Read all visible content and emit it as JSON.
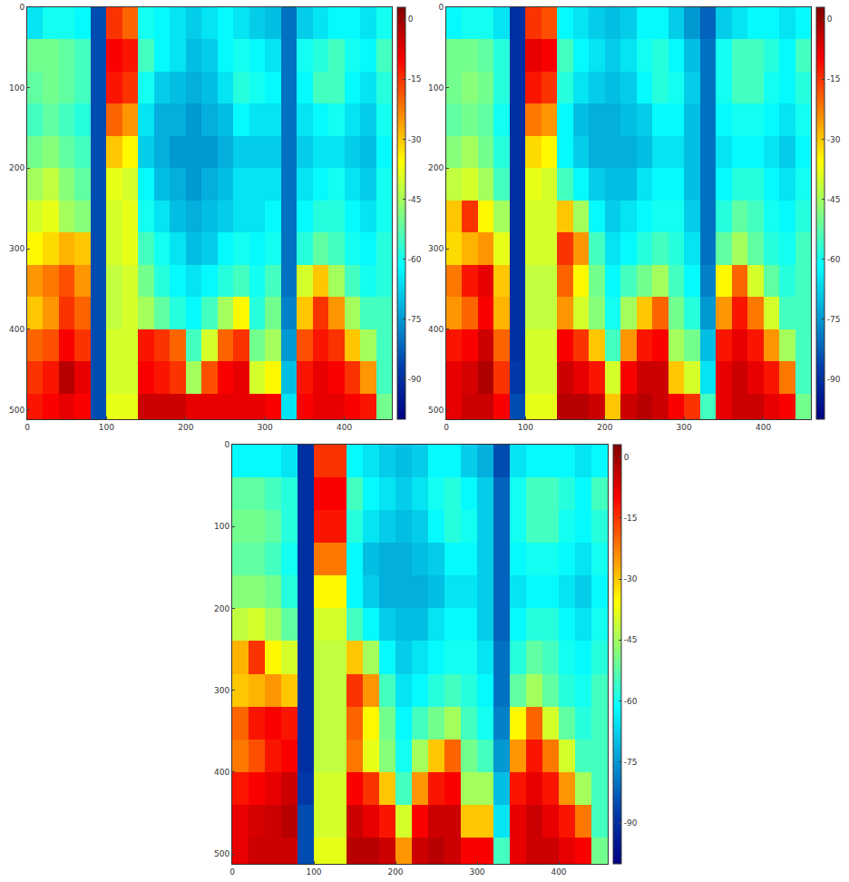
{
  "chart_data": [
    {
      "type": "heatmap",
      "color": "Jet",
      "x": [
        10,
        30,
        50,
        70,
        90,
        110,
        130,
        150,
        170,
        190,
        210,
        230,
        250,
        270,
        290,
        310,
        330,
        350,
        370,
        390,
        410,
        430,
        450
      ],
      "y": [
        20,
        60,
        100,
        140,
        180,
        220,
        260,
        300,
        340,
        380,
        420,
        460,
        500
      ],
      "cells": [
        [
          -65,
          -60,
          -60,
          -62,
          -85,
          -15,
          -20,
          -60,
          -62,
          -65,
          -68,
          -65,
          -62,
          -65,
          -68,
          -70,
          -80,
          -68,
          -65,
          -62,
          -62,
          -65,
          -60
        ],
        [
          -50,
          -50,
          -52,
          -55,
          -85,
          -10,
          -12,
          -55,
          -62,
          -65,
          -70,
          -68,
          -62,
          -60,
          -62,
          -65,
          -80,
          -60,
          -58,
          -55,
          -60,
          -62,
          -55
        ],
        [
          -52,
          -50,
          -52,
          -55,
          -85,
          -12,
          -15,
          -60,
          -68,
          -70,
          -72,
          -70,
          -65,
          -58,
          -60,
          -62,
          -80,
          -62,
          -55,
          -55,
          -62,
          -65,
          -58
        ],
        [
          -55,
          -52,
          -55,
          -58,
          -85,
          -20,
          -25,
          -65,
          -72,
          -72,
          -75,
          -72,
          -70,
          -62,
          -65,
          -65,
          -80,
          -65,
          -62,
          -60,
          -65,
          -68,
          -60
        ],
        [
          -50,
          -48,
          -52,
          -55,
          -85,
          -30,
          -35,
          -68,
          -72,
          -75,
          -75,
          -75,
          -72,
          -68,
          -68,
          -68,
          -80,
          -68,
          -65,
          -65,
          -68,
          -70,
          -62
        ],
        [
          -45,
          -42,
          -48,
          -52,
          -85,
          -38,
          -40,
          -62,
          -70,
          -72,
          -75,
          -72,
          -70,
          -65,
          -65,
          -65,
          -80,
          -65,
          -62,
          -60,
          -65,
          -68,
          -60
        ],
        [
          -40,
          -38,
          -45,
          -48,
          -85,
          -40,
          -38,
          -60,
          -65,
          -70,
          -72,
          -70,
          -68,
          -65,
          -65,
          -62,
          -80,
          -62,
          -58,
          -58,
          -62,
          -65,
          -60
        ],
        [
          -35,
          -32,
          -28,
          -30,
          -85,
          -40,
          -38,
          -55,
          -60,
          -65,
          -70,
          -68,
          -62,
          -60,
          -62,
          -60,
          -80,
          -58,
          -52,
          -55,
          -60,
          -62,
          -58
        ],
        [
          -25,
          -22,
          -18,
          -25,
          -85,
          -42,
          -40,
          -50,
          -58,
          -62,
          -65,
          -62,
          -58,
          -55,
          -60,
          -55,
          -80,
          -40,
          -30,
          -45,
          -55,
          -60,
          -58
        ],
        [
          -30,
          -25,
          -15,
          -20,
          -85,
          -42,
          -40,
          -45,
          -52,
          -58,
          -62,
          -55,
          -45,
          -35,
          -58,
          -50,
          -78,
          -30,
          -15,
          -25,
          -45,
          -55,
          -55
        ],
        [
          -20,
          -18,
          -10,
          -15,
          -85,
          -40,
          -40,
          -12,
          -15,
          -20,
          -55,
          -40,
          -20,
          -15,
          -50,
          -45,
          -75,
          -18,
          -12,
          -15,
          -30,
          -45,
          -55
        ],
        [
          -15,
          -12,
          -3,
          -8,
          -85,
          -40,
          -40,
          -10,
          -12,
          -15,
          -45,
          -18,
          -10,
          -8,
          -40,
          -35,
          -70,
          -12,
          -8,
          -10,
          -15,
          -25,
          -55
        ],
        [
          -12,
          -10,
          -8,
          -10,
          -85,
          -38,
          -38,
          -5,
          -5,
          -5,
          -8,
          -8,
          -8,
          -8,
          -8,
          -10,
          -65,
          -10,
          -8,
          -8,
          -10,
          -12,
          -50
        ]
      ],
      "xlim": [
        0,
        460
      ],
      "ylim": [
        512,
        0
      ],
      "xticks": [
        0,
        100,
        200,
        300,
        400
      ],
      "yticks": [
        0,
        100,
        200,
        300,
        400,
        500
      ],
      "colorbar_range": [
        -100,
        3
      ],
      "colorbar_ticks": [
        0,
        -15,
        -30,
        -45,
        -60,
        -75,
        -90
      ]
    },
    {
      "type": "heatmap",
      "color": "Jet",
      "x": [
        10,
        30,
        50,
        70,
        90,
        110,
        130,
        150,
        170,
        190,
        210,
        230,
        250,
        270,
        290,
        310,
        330,
        350,
        370,
        390,
        410,
        430,
        450
      ],
      "y": [
        20,
        60,
        100,
        140,
        180,
        220,
        260,
        300,
        340,
        380,
        420,
        460,
        500
      ],
      "cells": [
        [
          -62,
          -60,
          -60,
          -65,
          -90,
          -15,
          -18,
          -62,
          -65,
          -68,
          -70,
          -68,
          -62,
          -62,
          -68,
          -75,
          -82,
          -68,
          -65,
          -62,
          -62,
          -65,
          -62
        ],
        [
          -50,
          -50,
          -52,
          -58,
          -90,
          -8,
          -10,
          -55,
          -62,
          -65,
          -68,
          -65,
          -60,
          -58,
          -62,
          -70,
          -80,
          -60,
          -55,
          -55,
          -58,
          -62,
          -55
        ],
        [
          -50,
          -48,
          -50,
          -58,
          -90,
          -12,
          -15,
          -58,
          -65,
          -68,
          -70,
          -68,
          -62,
          -58,
          -60,
          -68,
          -80,
          -60,
          -55,
          -55,
          -60,
          -62,
          -58
        ],
        [
          -52,
          -50,
          -52,
          -60,
          -90,
          -22,
          -25,
          -62,
          -70,
          -72,
          -72,
          -70,
          -68,
          -62,
          -62,
          -70,
          -80,
          -62,
          -60,
          -60,
          -62,
          -65,
          -60
        ],
        [
          -48,
          -45,
          -50,
          -58,
          -90,
          -32,
          -35,
          -62,
          -68,
          -72,
          -72,
          -72,
          -70,
          -65,
          -65,
          -70,
          -80,
          -65,
          -62,
          -62,
          -65,
          -68,
          -62
        ],
        [
          -42,
          -40,
          -45,
          -55,
          -90,
          -38,
          -40,
          -55,
          -62,
          -68,
          -70,
          -70,
          -65,
          -62,
          -62,
          -70,
          -80,
          -62,
          -58,
          -58,
          -62,
          -65,
          -60
        ],
        [
          -30,
          -15,
          -35,
          -45,
          -90,
          -40,
          -40,
          -30,
          -45,
          -62,
          -68,
          -65,
          -62,
          -60,
          -60,
          -68,
          -80,
          -58,
          -52,
          -55,
          -60,
          -62,
          -58
        ],
        [
          -32,
          -28,
          -25,
          -38,
          -90,
          -40,
          -40,
          -15,
          -25,
          -55,
          -65,
          -62,
          -58,
          -55,
          -58,
          -65,
          -80,
          -52,
          -45,
          -52,
          -58,
          -60,
          -55
        ],
        [
          -22,
          -12,
          -8,
          -30,
          -90,
          -42,
          -42,
          -20,
          -35,
          -50,
          -62,
          -55,
          -50,
          -45,
          -55,
          -62,
          -78,
          -35,
          -20,
          -40,
          -52,
          -58,
          -55
        ],
        [
          -25,
          -20,
          -10,
          -28,
          -90,
          -42,
          -42,
          -25,
          -40,
          -48,
          -60,
          -45,
          -30,
          -20,
          -50,
          -58,
          -75,
          -25,
          -12,
          -22,
          -40,
          -55,
          -55
        ],
        [
          -12,
          -10,
          -5,
          -20,
          -90,
          -40,
          -40,
          -10,
          -15,
          -30,
          -55,
          -25,
          -12,
          -10,
          -45,
          -50,
          -70,
          -12,
          -8,
          -12,
          -25,
          -45,
          -55
        ],
        [
          -8,
          -6,
          -2,
          -15,
          -88,
          -40,
          -40,
          -5,
          -8,
          -12,
          -40,
          -10,
          -5,
          -5,
          -30,
          -40,
          -65,
          -8,
          -5,
          -8,
          -12,
          -22,
          -55
        ],
        [
          -8,
          -5,
          -5,
          -10,
          -85,
          -38,
          -38,
          -3,
          -3,
          -5,
          -30,
          -5,
          -3,
          -5,
          -10,
          -15,
          -55,
          -8,
          -5,
          -5,
          -8,
          -10,
          -50
        ]
      ],
      "xlim": [
        0,
        460
      ],
      "ylim": [
        512,
        0
      ],
      "xticks": [
        0,
        100,
        200,
        300,
        400
      ],
      "yticks": [
        0,
        100,
        200,
        300,
        400,
        500
      ],
      "colorbar_range": [
        -100,
        3
      ],
      "colorbar_ticks": [
        0,
        -15,
        -30,
        -45,
        -60,
        -75,
        -90
      ]
    },
    {
      "type": "heatmap",
      "color": "Jet",
      "x": [
        10,
        30,
        50,
        70,
        90,
        110,
        130,
        150,
        170,
        190,
        210,
        230,
        250,
        270,
        290,
        310,
        330,
        350,
        370,
        390,
        410,
        430,
        450
      ],
      "y": [
        20,
        60,
        100,
        140,
        180,
        220,
        260,
        300,
        340,
        380,
        420,
        460,
        500
      ],
      "cells": [
        [
          -62,
          -62,
          -62,
          -65,
          -90,
          -15,
          -15,
          -62,
          -65,
          -68,
          -70,
          -68,
          -62,
          -62,
          -68,
          -72,
          -85,
          -65,
          -62,
          -62,
          -62,
          -65,
          -62
        ],
        [
          -52,
          -52,
          -55,
          -58,
          -90,
          -10,
          -10,
          -55,
          -62,
          -65,
          -68,
          -65,
          -60,
          -58,
          -62,
          -68,
          -82,
          -60,
          -55,
          -55,
          -58,
          -62,
          -55
        ],
        [
          -50,
          -50,
          -52,
          -58,
          -90,
          -12,
          -12,
          -58,
          -65,
          -68,
          -70,
          -68,
          -62,
          -58,
          -60,
          -68,
          -82,
          -60,
          -55,
          -55,
          -60,
          -62,
          -58
        ],
        [
          -52,
          -52,
          -55,
          -60,
          -90,
          -22,
          -22,
          -62,
          -70,
          -72,
          -72,
          -70,
          -68,
          -62,
          -62,
          -68,
          -82,
          -62,
          -60,
          -60,
          -62,
          -65,
          -60
        ],
        [
          -48,
          -48,
          -50,
          -58,
          -90,
          -35,
          -35,
          -62,
          -68,
          -72,
          -72,
          -72,
          -70,
          -65,
          -65,
          -68,
          -82,
          -65,
          -62,
          -62,
          -65,
          -68,
          -62
        ],
        [
          -42,
          -40,
          -45,
          -52,
          -90,
          -40,
          -40,
          -55,
          -62,
          -68,
          -70,
          -70,
          -65,
          -62,
          -62,
          -68,
          -82,
          -62,
          -58,
          -58,
          -62,
          -65,
          -60
        ],
        [
          -28,
          -15,
          -35,
          -40,
          -90,
          -42,
          -42,
          -30,
          -45,
          -62,
          -68,
          -65,
          -62,
          -60,
          -60,
          -65,
          -80,
          -58,
          -52,
          -55,
          -60,
          -62,
          -58
        ],
        [
          -30,
          -28,
          -25,
          -30,
          -90,
          -42,
          -42,
          -15,
          -25,
          -55,
          -65,
          -62,
          -58,
          -55,
          -58,
          -62,
          -80,
          -52,
          -45,
          -52,
          -58,
          -60,
          -55
        ],
        [
          -20,
          -12,
          -10,
          -12,
          -90,
          -42,
          -42,
          -20,
          -35,
          -50,
          -62,
          -55,
          -50,
          -45,
          -55,
          -60,
          -78,
          -35,
          -20,
          -40,
          -52,
          -58,
          -55
        ],
        [
          -22,
          -18,
          -12,
          -10,
          -90,
          -42,
          -42,
          -22,
          -38,
          -48,
          -60,
          -45,
          -30,
          -20,
          -50,
          -55,
          -75,
          -25,
          -12,
          -22,
          -40,
          -55,
          -55
        ],
        [
          -12,
          -10,
          -8,
          -5,
          -88,
          -40,
          -40,
          -10,
          -15,
          -30,
          -55,
          -25,
          -12,
          -10,
          -45,
          -45,
          -70,
          -12,
          -8,
          -12,
          -25,
          -45,
          -55
        ],
        [
          -8,
          -6,
          -5,
          -3,
          -85,
          -40,
          -40,
          -5,
          -8,
          -12,
          -40,
          -10,
          -5,
          -5,
          -30,
          -30,
          -65,
          -8,
          -5,
          -8,
          -12,
          -22,
          -55
        ],
        [
          -8,
          -5,
          -5,
          -5,
          -85,
          -38,
          -38,
          -3,
          -3,
          -5,
          -25,
          -5,
          -3,
          -5,
          -10,
          -10,
          -55,
          -8,
          -5,
          -5,
          -8,
          -10,
          -50
        ]
      ],
      "xlim": [
        0,
        460
      ],
      "ylim": [
        512,
        0
      ],
      "xticks": [
        0,
        100,
        200,
        300,
        400
      ],
      "yticks": [
        0,
        100,
        200,
        300,
        400,
        500
      ],
      "colorbar_range": [
        -100,
        3
      ],
      "colorbar_ticks": [
        0,
        -15,
        -30,
        -45,
        -60,
        -75,
        -90
      ]
    }
  ]
}
